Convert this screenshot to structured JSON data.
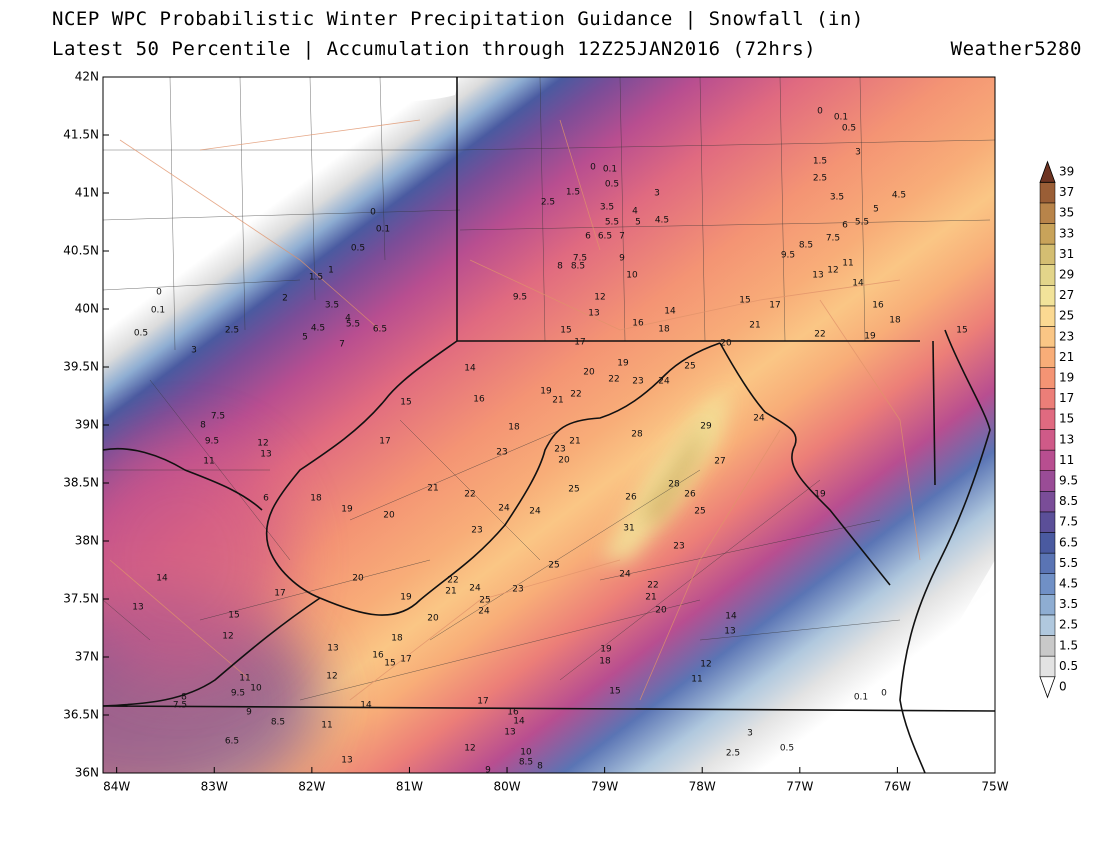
{
  "header": {
    "title": "NCEP WPC Probabilistic Winter Precipitation Guidance | Snowfall (in)",
    "subtitle": "Latest 50 Percentile | Accumulation through 12Z25JAN2016 (72hrs)",
    "credit": "Weather5280"
  },
  "map": {
    "type": "contour-map",
    "xlim": [
      -84.14,
      -75
    ],
    "ylim": [
      36,
      42
    ],
    "xticks": [
      {
        "value": -84,
        "label": "84W"
      },
      {
        "value": -83,
        "label": "83W"
      },
      {
        "value": -82,
        "label": "82W"
      },
      {
        "value": -81,
        "label": "81W"
      },
      {
        "value": -80,
        "label": "80W"
      },
      {
        "value": -79,
        "label": "79W"
      },
      {
        "value": -78,
        "label": "78W"
      },
      {
        "value": -77,
        "label": "77W"
      },
      {
        "value": -76,
        "label": "76W"
      },
      {
        "value": -75,
        "label": "75W"
      }
    ],
    "yticks": [
      {
        "value": 36,
        "label": "36N"
      },
      {
        "value": 36.5,
        "label": "36.5N"
      },
      {
        "value": 37,
        "label": "37N"
      },
      {
        "value": 37.5,
        "label": "37.5N"
      },
      {
        "value": 38,
        "label": "38N"
      },
      {
        "value": 38.5,
        "label": "38.5N"
      },
      {
        "value": 39,
        "label": "39N"
      },
      {
        "value": 39.5,
        "label": "39.5N"
      },
      {
        "value": 40,
        "label": "40N"
      },
      {
        "value": 40.5,
        "label": "40.5N"
      },
      {
        "value": 41,
        "label": "41N"
      },
      {
        "value": 41.5,
        "label": "41.5N"
      },
      {
        "value": 42,
        "label": "42N"
      }
    ],
    "contour_labels": [
      0,
      0.1,
      0.5,
      3,
      1.5,
      2.5,
      3.5,
      4.5,
      5,
      6,
      5.5,
      7.5,
      8.5,
      9.5,
      11,
      12,
      13,
      14,
      16,
      18,
      19,
      22,
      21,
      17,
      15,
      20,
      0,
      0.1,
      0.5,
      1.5,
      2.5,
      3,
      3.5,
      4,
      5.5,
      5,
      4.5,
      6,
      6.5,
      7,
      7.5,
      8,
      8.5,
      9,
      10,
      9.5,
      12,
      13,
      14,
      16,
      18,
      15,
      17,
      0,
      0.1,
      0.5,
      1,
      1.5,
      2,
      3.5,
      4,
      4.5,
      5,
      5.5,
      6.5,
      7,
      0,
      0.1,
      0.5,
      2.5,
      3,
      7.5,
      8,
      9.5,
      12,
      13,
      11,
      14,
      15,
      16,
      17,
      18,
      19,
      21,
      22,
      20,
      19,
      22,
      23,
      24,
      25,
      23,
      21,
      23,
      20,
      28,
      29,
      24,
      27,
      28,
      26,
      25,
      26,
      25,
      31,
      21,
      22,
      24,
      24,
      20,
      19,
      18,
      6,
      23,
      25,
      24,
      23,
      22,
      21,
      20,
      19,
      20,
      17,
      19,
      22,
      21,
      24,
      25,
      23,
      24,
      20,
      15,
      14,
      13,
      12,
      18,
      13,
      16,
      15,
      17,
      12,
      14,
      13,
      19,
      18,
      12,
      11,
      15,
      17,
      16,
      14,
      14,
      13,
      11,
      9.5,
      10,
      8,
      7.5,
      9,
      8.5,
      11,
      6.5,
      13,
      12,
      10,
      8.5,
      8,
      9,
      0.1,
      0,
      3,
      2.5,
      0.5,
      15
    ]
  },
  "colorbar": {
    "levels": [
      0,
      0.5,
      1.5,
      2.5,
      3.5,
      4.5,
      5.5,
      6.5,
      7.5,
      8.5,
      9.5,
      11,
      13,
      15,
      17,
      19,
      21,
      23,
      25,
      27,
      29,
      31,
      33,
      35,
      37,
      39
    ],
    "colors": [
      "#ffffff",
      "#e3e3e3",
      "#c9c9c9",
      "#b0c8de",
      "#8eadd2",
      "#7090c6",
      "#5a74b4",
      "#4a5aa0",
      "#5b4f98",
      "#7a4d98",
      "#9a4c96",
      "#b84e90",
      "#cf5a88",
      "#e06a80",
      "#ec7e78",
      "#f49474",
      "#f8ad78",
      "#fac685",
      "#fbd992",
      "#f2e39a",
      "#e3d58a",
      "#d4be72",
      "#c8a35a",
      "#b8844a",
      "#9a5e36",
      "#6e3422"
    ]
  }
}
